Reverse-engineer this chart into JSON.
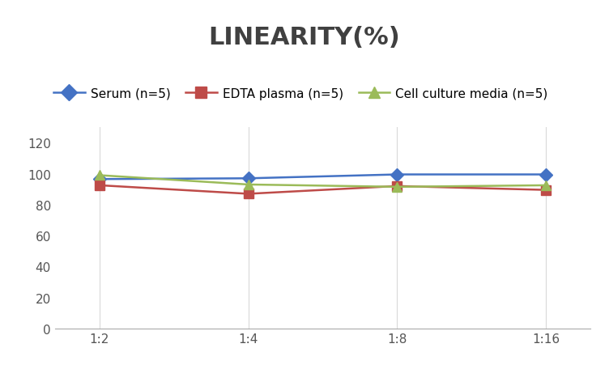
{
  "title": "LINEARITY(%)",
  "title_fontsize": 22,
  "title_fontweight": "bold",
  "x_labels": [
    "1:2",
    "1:4",
    "1:8",
    "1:16"
  ],
  "x_positions": [
    0,
    1,
    2,
    3
  ],
  "series": [
    {
      "label": "Serum (n=5)",
      "values": [
        96.5,
        97.0,
        99.5,
        99.5
      ],
      "color": "#4472C4",
      "marker": "D",
      "markersize": 8,
      "linewidth": 1.8
    },
    {
      "label": "EDTA plasma (n=5)",
      "values": [
        92.5,
        87.0,
        92.0,
        89.5
      ],
      "color": "#BE4B48",
      "marker": "s",
      "markersize": 8,
      "linewidth": 1.8
    },
    {
      "label": "Cell culture media (n=5)",
      "values": [
        99.0,
        93.0,
        91.5,
        92.5
      ],
      "color": "#9BBB59",
      "marker": "^",
      "markersize": 8,
      "linewidth": 1.8
    }
  ],
  "ylim": [
    0,
    130
  ],
  "yticks": [
    0,
    20,
    40,
    60,
    80,
    100,
    120
  ],
  "grid_color": "#D9D9D9",
  "background_color": "#FFFFFF",
  "legend_fontsize": 11,
  "tick_fontsize": 11,
  "title_color": "#404040"
}
